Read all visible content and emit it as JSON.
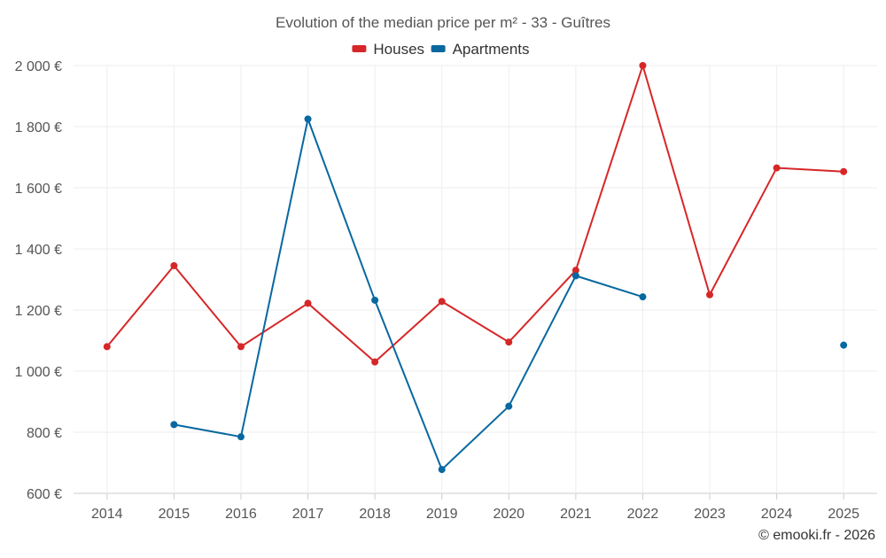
{
  "chart_data": {
    "type": "line",
    "title": "Evolution of the median price per m² - 33 - Guîtres",
    "xlabel": "",
    "ylabel": "",
    "categories": [
      "2014",
      "2015",
      "2016",
      "2017",
      "2018",
      "2019",
      "2020",
      "2021",
      "2022",
      "2023",
      "2024",
      "2025"
    ],
    "ylim": [
      600,
      2000
    ],
    "yticks": [
      600,
      800,
      1000,
      1200,
      1400,
      1600,
      1800,
      2000
    ],
    "ytick_labels": [
      "600 €",
      "800 €",
      "1 000 €",
      "1 200 €",
      "1 400 €",
      "1 600 €",
      "1 800 €",
      "2 000 €"
    ],
    "grid": true,
    "legend_position": "top-center",
    "series": [
      {
        "name": "Houses",
        "color": "#d62728",
        "values": [
          1080,
          1345,
          1080,
          1222,
          1030,
          1228,
          1095,
          1330,
          2000,
          1250,
          1665,
          1653
        ]
      },
      {
        "name": "Apartments",
        "color": "#0868a0",
        "values": [
          null,
          825,
          785,
          1825,
          1232,
          678,
          885,
          1312,
          1243,
          null,
          null,
          1085
        ]
      }
    ],
    "credit": "© emooki.fr - 2026"
  }
}
